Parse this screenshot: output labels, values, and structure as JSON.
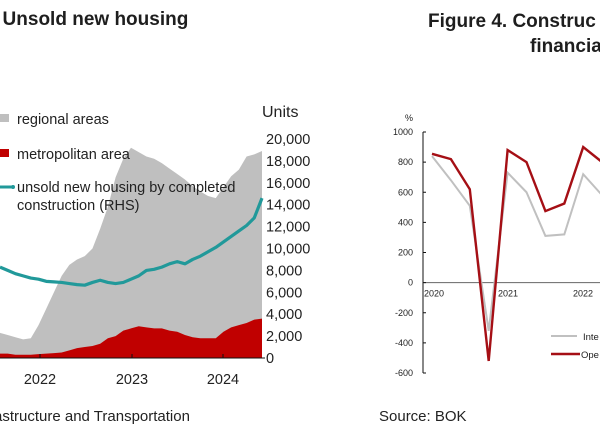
{
  "left": {
    "title": ". Unsold new housing",
    "units_label": "Units",
    "source": "astructure and Transportation"
  },
  "right": {
    "title_line1": "Figure 4. Construc",
    "title_line2": "financia",
    "source": "Source: BOK"
  },
  "chart_data": [
    {
      "type": "area",
      "title": "Unsold new housing",
      "ylabel": "Units",
      "ylim": [
        0,
        20000
      ],
      "yticks": [
        "20,000",
        "18,000",
        "16,000",
        "14,000",
        "12,000",
        "10,000",
        "8,000",
        "6,000",
        "4,000",
        "2,000",
        "0"
      ],
      "xticks": [
        "2022",
        "2023",
        "2024"
      ],
      "legend_position": "top-left",
      "grid": false,
      "x": [
        "2021.57",
        "2021.65",
        "2021.73",
        "2021.82",
        "2021.90",
        "2021.98",
        "2022.07",
        "2022.15",
        "2022.23",
        "2022.32",
        "2022.40",
        "2022.48",
        "2022.57",
        "2022.65",
        "2022.73",
        "2022.82",
        "2022.90",
        "2022.98",
        "2023.07",
        "2023.15",
        "2023.23",
        "2023.32",
        "2023.40",
        "2023.48",
        "2023.57",
        "2023.65",
        "2023.73",
        "2023.82",
        "2023.90",
        "2023.98",
        "2024.07",
        "2024.15",
        "2024.23",
        "2024.32",
        "2024.40"
      ],
      "series": [
        {
          "name": "regional areas",
          "kind": "stacked-area",
          "color": "#bfbfbf",
          "total_values": [
            2300,
            2100,
            1900,
            1700,
            1800,
            3000,
            4500,
            6000,
            7500,
            8500,
            9000,
            9300,
            10000,
            11800,
            13800,
            16500,
            18200,
            19200,
            18800,
            18400,
            18200,
            17800,
            17300,
            16800,
            16300,
            15700,
            15200,
            14800,
            14600,
            15600,
            16600,
            17200,
            18400,
            18600,
            18900
          ]
        },
        {
          "name": "metropolitan area",
          "kind": "stacked-area",
          "color": "#c00000",
          "values": [
            400,
            400,
            300,
            300,
            300,
            350,
            400,
            450,
            500,
            700,
            900,
            1000,
            1100,
            1300,
            1800,
            2000,
            2500,
            2700,
            2900,
            2800,
            2700,
            2700,
            2500,
            2400,
            2100,
            1900,
            1800,
            1800,
            1800,
            2400,
            2800,
            3000,
            3200,
            3500,
            3600
          ]
        },
        {
          "name": "unsold new housing by completed construction (RHS)",
          "kind": "line",
          "color": "#21999a",
          "values": [
            8300,
            8000,
            7700,
            7500,
            7300,
            7200,
            7000,
            6950,
            6900,
            6800,
            6700,
            6650,
            6900,
            7100,
            6900,
            6800,
            6900,
            7200,
            7500,
            8000,
            8100,
            8300,
            8600,
            8800,
            8600,
            9000,
            9300,
            9700,
            10100,
            10600,
            11100,
            11600,
            12100,
            12800,
            14600
          ]
        }
      ]
    },
    {
      "type": "line",
      "title": "Figure 4. Construc... financia...",
      "ylabel": "%",
      "ylim": [
        -600,
        1000
      ],
      "yticks": [
        "1000",
        "800",
        "600",
        "400",
        "200",
        "0",
        "-200",
        "-400",
        "-600"
      ],
      "xticks": [
        "2020",
        "2021",
        "2022"
      ],
      "legend_position": "bottom-right",
      "grid": false,
      "x": [
        "2020Q1",
        "2020Q2",
        "2020Q3",
        "2020Q4",
        "2021Q1",
        "2021Q2",
        "2021Q3",
        "2021Q4",
        "2022Q1",
        "2022Q2"
      ],
      "series": [
        {
          "name": "Inte",
          "color": "#c0c0c0",
          "values": [
            840,
            680,
            510,
            -320,
            730,
            600,
            310,
            320,
            720,
            580
          ]
        },
        {
          "name": "Ope",
          "color": "#a50f15",
          "values": [
            855,
            820,
            620,
            -520,
            880,
            800,
            475,
            525,
            900,
            800
          ]
        }
      ]
    }
  ]
}
